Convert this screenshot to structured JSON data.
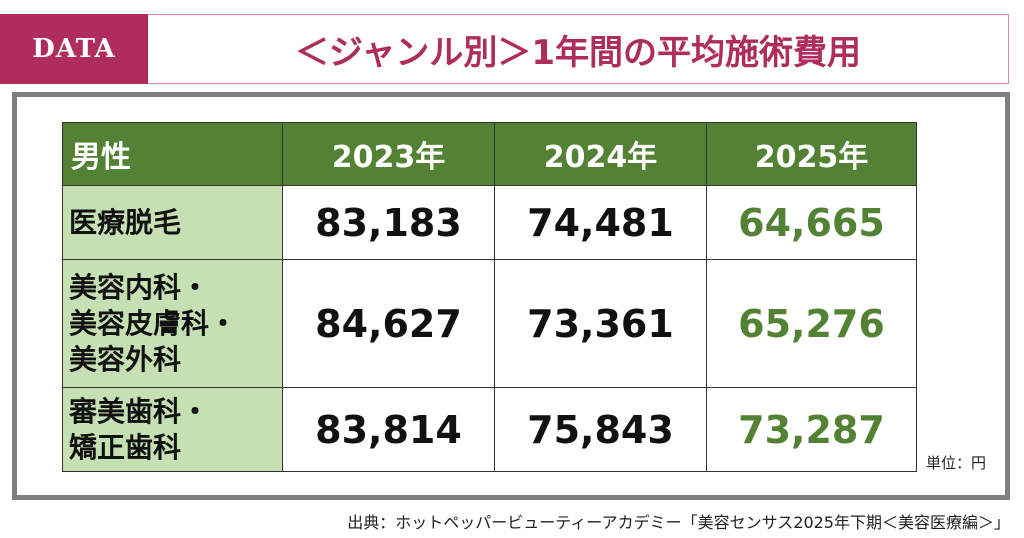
{
  "header": {
    "tag": "DATA",
    "title": "＜ジャンル別＞1年間の平均施術費用"
  },
  "colors": {
    "brand": "#ae2d5b",
    "header_green": "#548235",
    "label_green": "#c5e0b3",
    "highlight": "#548235"
  },
  "chart_data": {
    "type": "table",
    "columns": [
      "男性",
      "2023年",
      "2024年",
      "2025年"
    ],
    "rows": [
      {
        "label": "医療脱毛",
        "values": [
          "83,183",
          "74,481",
          "64,665"
        ]
      },
      {
        "label": "美容内科・\n美容皮膚科・\n美容外科",
        "values": [
          "84,627",
          "73,361",
          "65,276"
        ]
      },
      {
        "label": "審美歯科・\n矯正歯科",
        "values": [
          "83,814",
          "75,843",
          "73,287"
        ]
      }
    ],
    "highlight_column": "2025年"
  },
  "unit": "単位：円",
  "source": "出典：ホットペッパービューティーアカデミー「美容センサス2025年下期＜美容医療編＞」"
}
